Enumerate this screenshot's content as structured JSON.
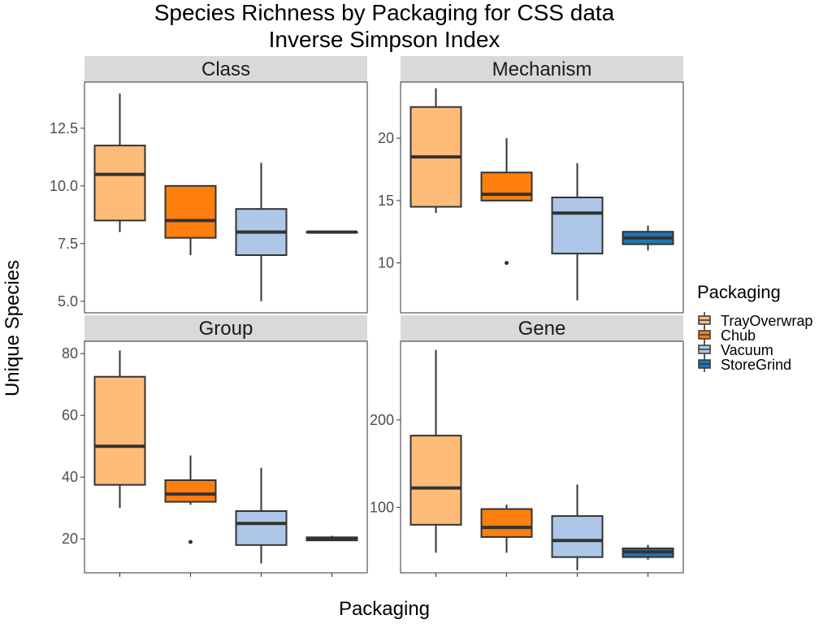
{
  "chart_data": {
    "type": "boxplot",
    "title": "Species Richness by Packaging for CSS data",
    "subtitle": "Inverse Simpson Index",
    "xlabel": "Packaging",
    "ylabel": "Unique Species",
    "legend": {
      "title": "Packaging",
      "position": "right",
      "entries": [
        "TrayOverwrap",
        "Chub",
        "Vacuum",
        "StoreGrind"
      ]
    },
    "colors": {
      "TrayOverwrap": "#ffbb78",
      "Chub": "#ff7f0e",
      "Vacuum": "#aec7e8",
      "StoreGrind": "#1f77b4"
    },
    "categories": [
      "TrayOverwrap",
      "Chub",
      "Vacuum",
      "StoreGrind"
    ],
    "panels": [
      {
        "name": "Class",
        "ylim": [
          4.5,
          14.5
        ],
        "yticks": [
          5.0,
          7.5,
          10.0,
          12.5
        ],
        "ytick_labels": [
          "5.0",
          "7.5",
          "10.0",
          "12.5"
        ],
        "boxes": [
          {
            "category": "TrayOverwrap",
            "min": 8,
            "q1": 8.5,
            "median": 10.5,
            "q3": 11.75,
            "max": 14,
            "outliers": []
          },
          {
            "category": "Chub",
            "min": 7,
            "q1": 7.75,
            "median": 8.5,
            "q3": 10,
            "max": 10,
            "outliers": []
          },
          {
            "category": "Vacuum",
            "min": 5,
            "q1": 7,
            "median": 8,
            "q3": 9,
            "max": 11,
            "outliers": []
          },
          {
            "category": "StoreGrind",
            "min": 8,
            "q1": 8,
            "median": 8,
            "q3": 8,
            "max": 8,
            "outliers": []
          }
        ]
      },
      {
        "name": "Mechanism",
        "ylim": [
          6,
          24.5
        ],
        "yticks": [
          10,
          15,
          20
        ],
        "ytick_labels": [
          "10",
          "15",
          "20"
        ],
        "boxes": [
          {
            "category": "TrayOverwrap",
            "min": 14,
            "q1": 14.5,
            "median": 18.5,
            "q3": 22.5,
            "max": 24,
            "outliers": []
          },
          {
            "category": "Chub",
            "min": 15,
            "q1": 15,
            "median": 15.5,
            "q3": 17.25,
            "max": 20,
            "outliers": [
              10
            ]
          },
          {
            "category": "Vacuum",
            "min": 7,
            "q1": 10.75,
            "median": 14,
            "q3": 15.25,
            "max": 18,
            "outliers": []
          },
          {
            "category": "StoreGrind",
            "min": 11,
            "q1": 11.5,
            "median": 12,
            "q3": 12.5,
            "max": 13,
            "outliers": []
          }
        ]
      },
      {
        "name": "Group",
        "ylim": [
          9,
          84
        ],
        "yticks": [
          20,
          40,
          60,
          80
        ],
        "ytick_labels": [
          "20",
          "40",
          "60",
          "80"
        ],
        "boxes": [
          {
            "category": "TrayOverwrap",
            "min": 30,
            "q1": 37.5,
            "median": 50,
            "q3": 72.5,
            "max": 81,
            "outliers": []
          },
          {
            "category": "Chub",
            "min": 31,
            "q1": 32,
            "median": 34.5,
            "q3": 39,
            "max": 47,
            "outliers": [
              19
            ]
          },
          {
            "category": "Vacuum",
            "min": 12,
            "q1": 18,
            "median": 25,
            "q3": 29,
            "max": 43,
            "outliers": []
          },
          {
            "category": "StoreGrind",
            "min": 19.5,
            "q1": 19.5,
            "median": 20,
            "q3": 20.5,
            "max": 21,
            "outliers": []
          }
        ]
      },
      {
        "name": "Gene",
        "ylim": [
          25,
          290
        ],
        "yticks": [
          100,
          200
        ],
        "ytick_labels": [
          "100",
          "200"
        ],
        "boxes": [
          {
            "category": "TrayOverwrap",
            "min": 48,
            "q1": 80,
            "median": 122,
            "q3": 182,
            "max": 280,
            "outliers": []
          },
          {
            "category": "Chub",
            "min": 48,
            "q1": 66,
            "median": 77,
            "q3": 98,
            "max": 103,
            "outliers": []
          },
          {
            "category": "Vacuum",
            "min": 28,
            "q1": 43,
            "median": 62,
            "q3": 90,
            "max": 126,
            "outliers": []
          },
          {
            "category": "StoreGrind",
            "min": 40,
            "q1": 43,
            "median": 49,
            "q3": 53,
            "max": 57,
            "outliers": []
          }
        ]
      }
    ]
  }
}
